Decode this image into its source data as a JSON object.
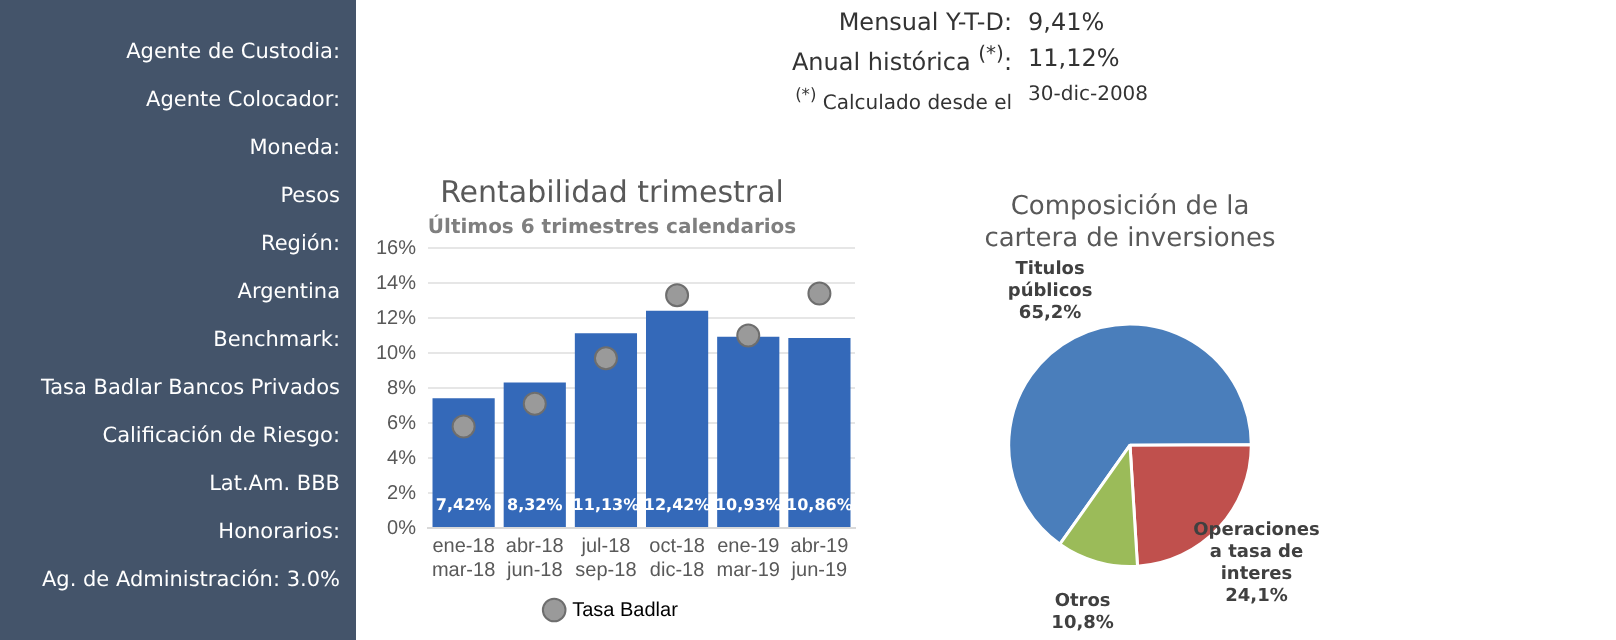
{
  "chart_data": [
    {
      "type": "other",
      "annotations": [
        "Agente de Custodia:",
        "Agente Colocador:",
        "Moneda:",
        "Pesos",
        "Región:",
        "Argentina",
        "Benchmark:",
        "Tasa Badlar Bancos Privados",
        "Calificación de Riesgo:",
        "Lat.Am. BBB",
        "Honorarios:",
        "Ag. de Administración: 3.0%"
      ]
    },
    {
      "type": "other",
      "annotations": [
        "Mensual Y-T-D:",
        "9,41%",
        "Anual histórica $^{(*)}$:",
        "11,12%",
        "$^{(*)}$ Calculado desde el",
        "30-dic-2008"
      ]
    },
    {
      "type": "bar",
      "title": "Rentabilidad trimestral",
      "subtitle": "Últimos 6 trimestres calendarios",
      "categories": [
        "ene-18\nmar-18",
        "abr-18\njun-18",
        "jul-18\nsep-18",
        "oct-18\ndic-18",
        "ene-19\nmar-19",
        "abr-19\njun-19"
      ],
      "ylim": [
        0,
        16
      ],
      "yticks": [
        {
          "value": 0,
          "label": "0%"
        },
        {
          "value": 2,
          "label": "2%"
        },
        {
          "value": 4,
          "label": "4%"
        },
        {
          "value": 6,
          "label": "6%"
        },
        {
          "value": 8,
          "label": "8%"
        },
        {
          "value": 10,
          "label": "10%"
        },
        {
          "value": 12,
          "label": "12%"
        },
        {
          "value": 14,
          "label": "14%"
        },
        {
          "value": 16,
          "label": "16%"
        }
      ],
      "grid": "y",
      "legend": "bottom",
      "series": [
        {
          "color": "#3469b9",
          "values": [
            7.42,
            8.32,
            11.13,
            12.42,
            10.93,
            10.86
          ],
          "value_labels": [
            "7,42%",
            "8,32%",
            "11,13%",
            "12,42%",
            "10,93%",
            "10,86%"
          ]
        },
        {
          "name": "Tasa Badlar",
          "type": "scatter",
          "marker": "circle",
          "color": "#9a9a9a",
          "x": [
            "ene-18\nmar-18",
            "abr-18\njun-18",
            "jul-18\nsep-18",
            "oct-18\ndic-18",
            "ene-19\nmar-19",
            "abr-19\njun-19"
          ],
          "values": [
            5.8,
            7.1,
            9.7,
            13.3,
            11.0,
            13.4
          ]
        }
      ]
    },
    {
      "type": "pie",
      "title": "Composición de la\ncartera de inversiones",
      "categories": [
        "Titulos públicos",
        "Operaciones a tasa de interes",
        "Otros"
      ],
      "values": [
        65.2,
        24.1,
        10.8
      ],
      "value_labels": [
        "65,2%",
        "24,1%",
        "10,8%"
      ],
      "colors": [
        "#4a7ebb",
        "#c0504d",
        "#9bbb59"
      ]
    }
  ]
}
